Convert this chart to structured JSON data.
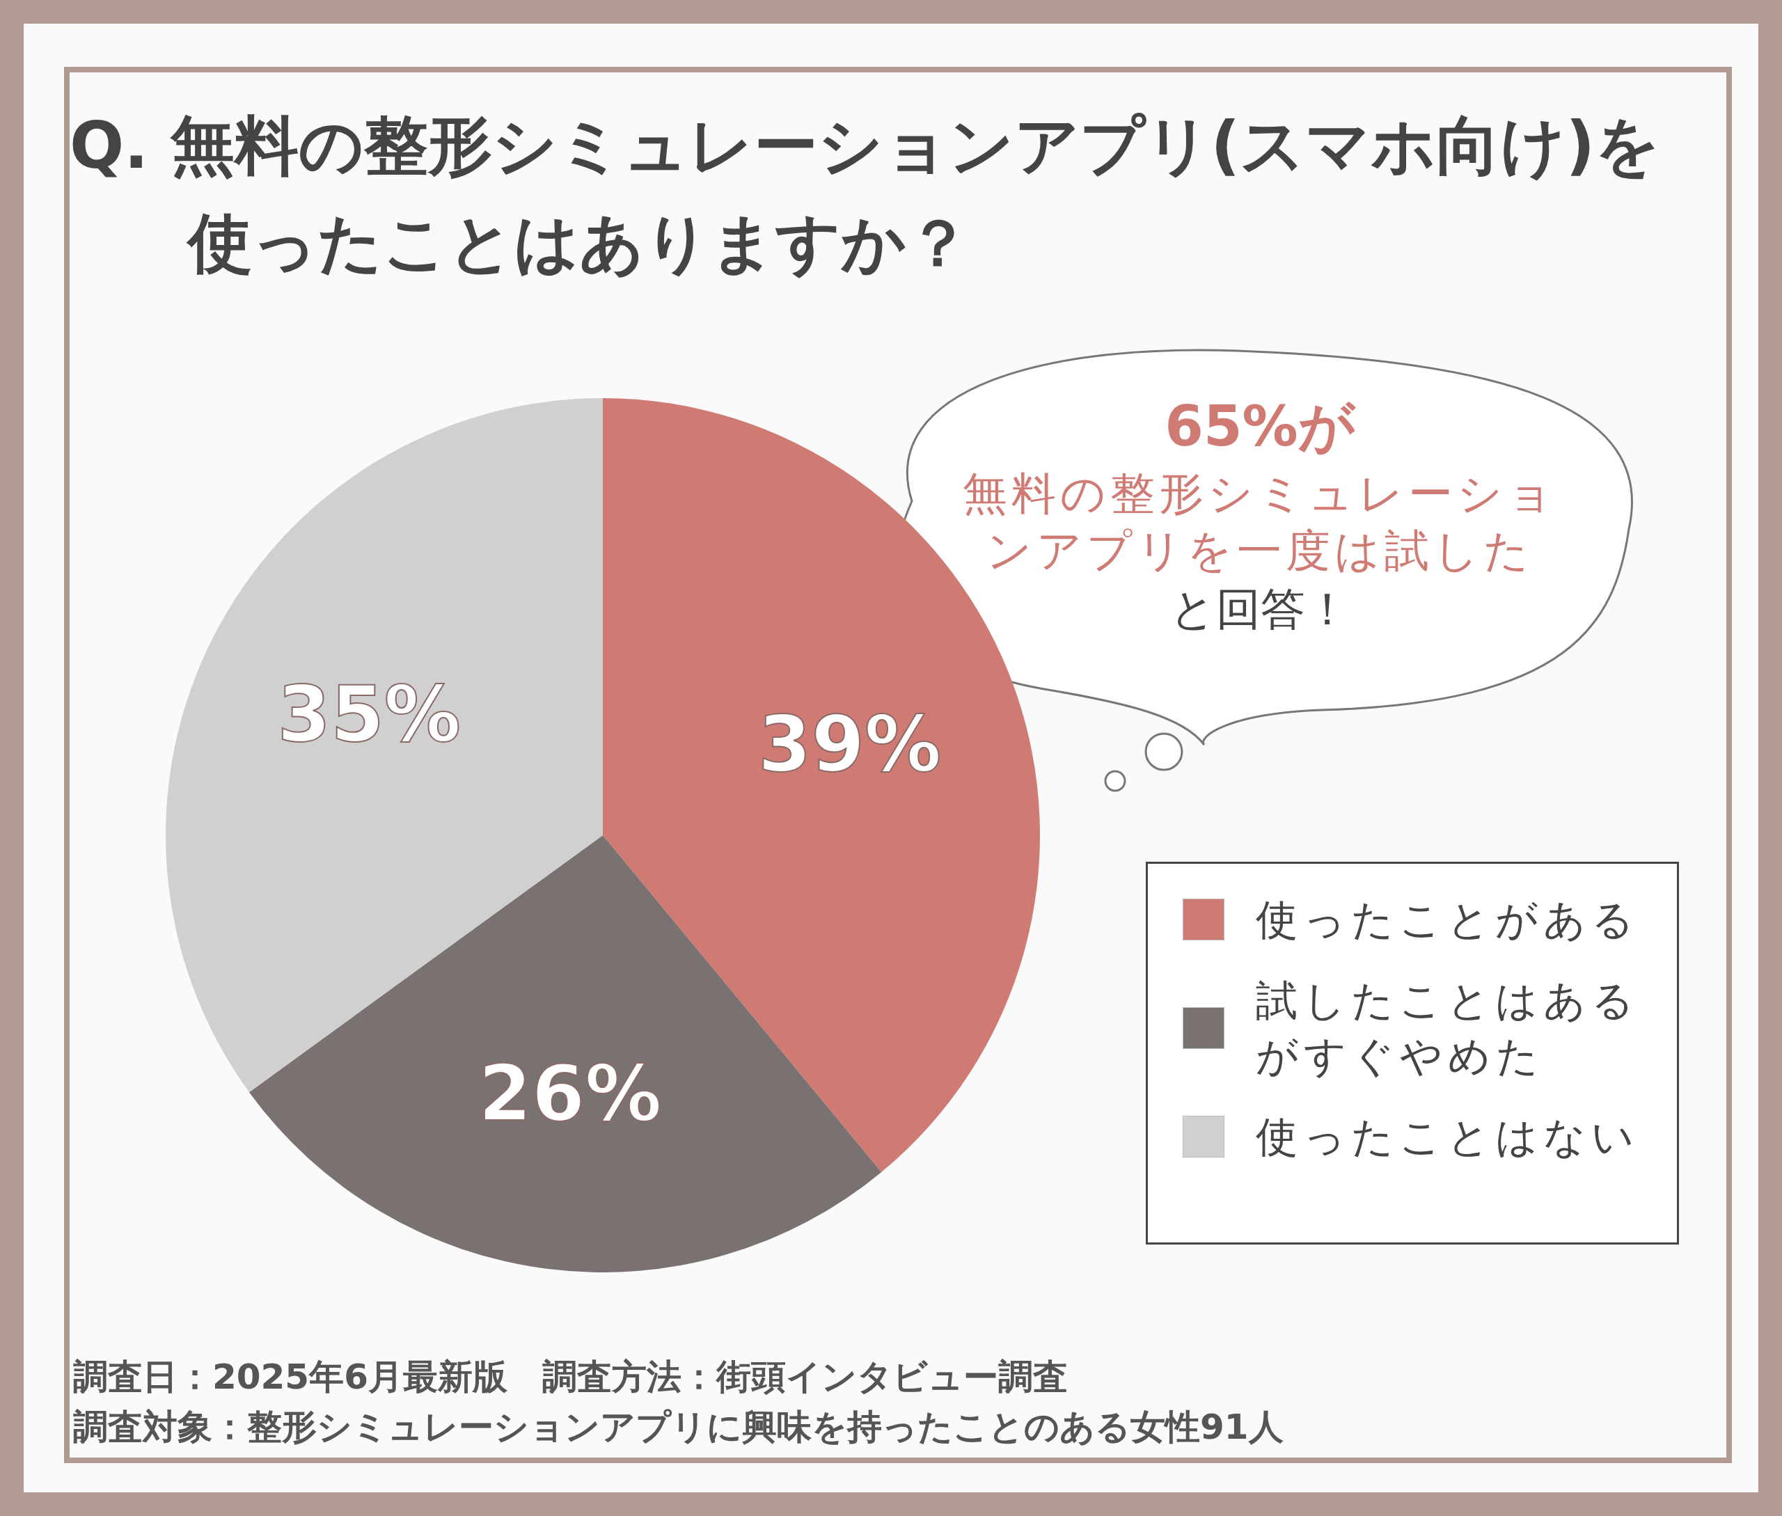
{
  "chart_data": {
    "type": "pie",
    "title": "Q. 無料の整形シミュレーションアプリ(スマホ向け)を使ったことはありますか？",
    "categories": [
      "使ったことがある",
      "試したことはあるがすぐやめた",
      "使ったことはない"
    ],
    "values": [
      39,
      26,
      35
    ],
    "value_labels": [
      "39%",
      "26%",
      "35%"
    ],
    "colors": [
      "#d07a74",
      "#7a7271",
      "#d0d0d0"
    ],
    "legend": "right",
    "annotations": [
      "65%が",
      "無料の整形シミュレーションアプリを一度は試した",
      "と回答！",
      "調査日：2025年6月最新版　調査方法：街頭インタビュー調査",
      "調査対象：整形シミュレーションアプリに興味を持ったことのある女性91人"
    ]
  }
}
